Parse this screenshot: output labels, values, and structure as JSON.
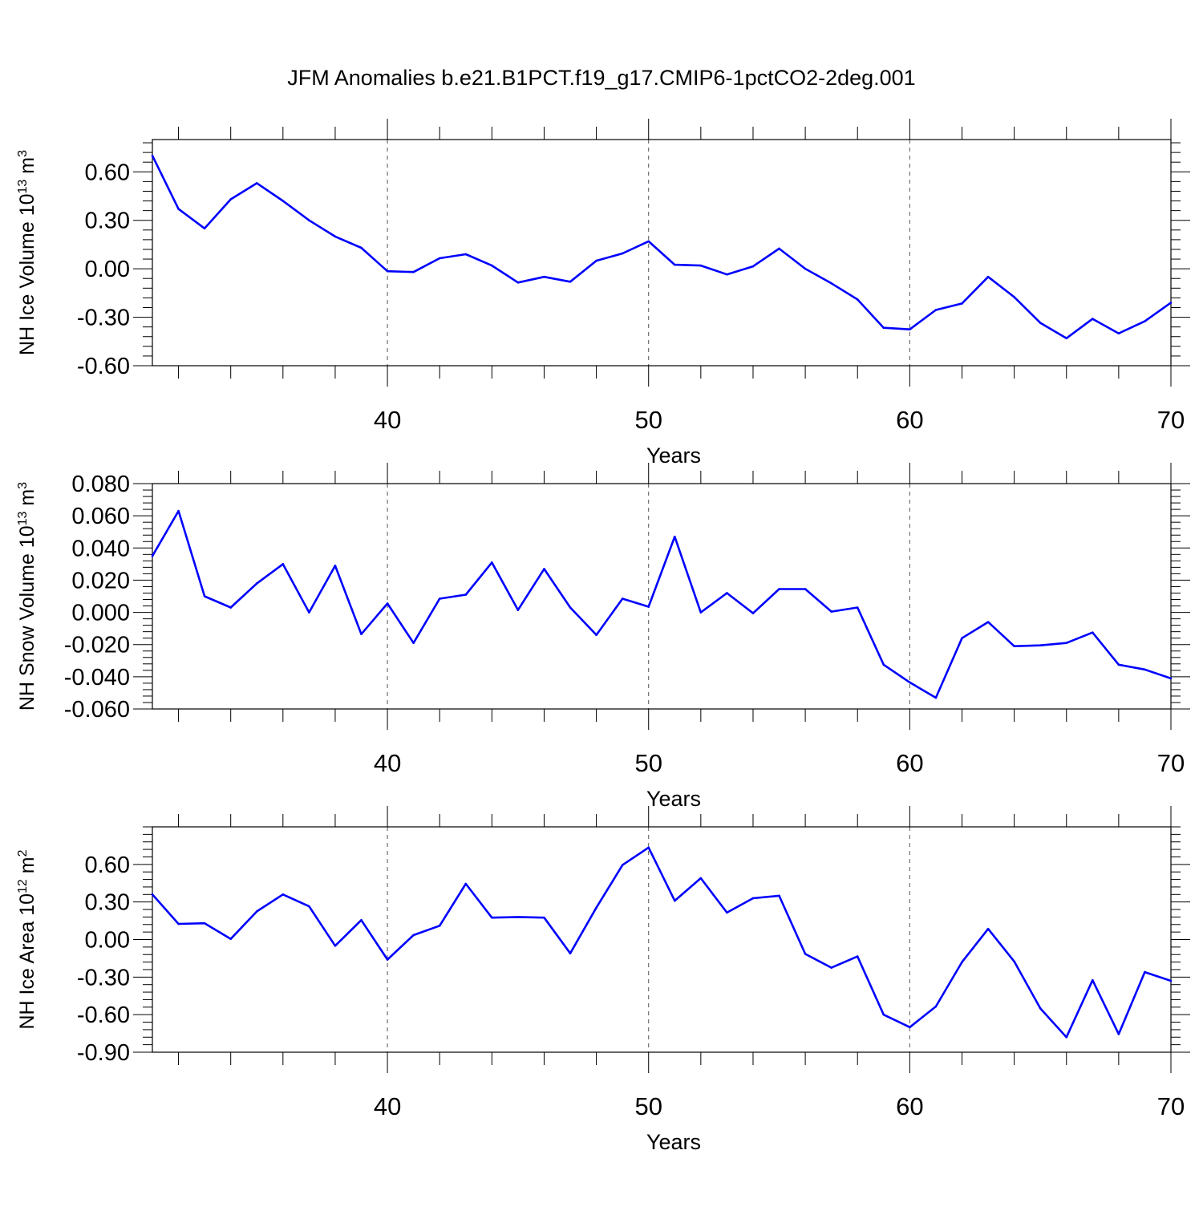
{
  "title": "JFM Anomalies b.e21.B1PCT.f19_g17.CMIP6-1pctCO2-2deg.001",
  "colors": {
    "line": "#0000ff",
    "axis": "#000000",
    "grid": "#555555"
  },
  "chart_data": [
    {
      "type": "line",
      "ylabel": "NH Ice Volume 10",
      "ylabel_sup": "13",
      "ylabel_unit": " m",
      "ylabel_unit_sup": "3",
      "xlabel": "Years",
      "xlim": [
        31,
        70
      ],
      "ylim": [
        -0.6,
        0.8
      ],
      "yticks": [
        -0.6,
        -0.3,
        0.0,
        0.3,
        0.6
      ],
      "ytick_labels": [
        "-0.60",
        "-0.30",
        "0.00",
        "0.30",
        "0.60"
      ],
      "xticks": [
        40,
        50,
        60,
        70
      ],
      "xtick_labels": [
        "40",
        "50",
        "60",
        "70"
      ],
      "grid": "vertical dashed at major x ticks",
      "x": [
        31,
        32,
        33,
        34,
        35,
        36,
        37,
        38,
        39,
        40,
        41,
        42,
        43,
        44,
        45,
        46,
        47,
        48,
        49,
        50,
        51,
        52,
        53,
        54,
        55,
        56,
        57,
        58,
        59,
        60,
        61,
        62,
        63,
        64,
        65,
        66,
        67,
        68,
        69,
        70
      ],
      "y": [
        0.7,
        0.37,
        0.25,
        0.43,
        0.53,
        0.42,
        0.3,
        0.2,
        0.13,
        -0.015,
        -0.02,
        0.065,
        0.09,
        0.02,
        -0.085,
        -0.05,
        -0.08,
        0.05,
        0.095,
        0.17,
        0.025,
        0.02,
        -0.035,
        0.015,
        0.125,
        0.0,
        -0.09,
        -0.19,
        -0.365,
        -0.375,
        -0.255,
        -0.215,
        -0.05,
        -0.175,
        -0.335,
        -0.43,
        -0.31,
        -0.4,
        -0.325,
        -0.21
      ]
    },
    {
      "type": "line",
      "ylabel": "NH Snow Volume 10",
      "ylabel_sup": "13",
      "ylabel_unit": " m",
      "ylabel_unit_sup": "3",
      "xlabel": "Years",
      "xlim": [
        31,
        70
      ],
      "ylim": [
        -0.06,
        0.08
      ],
      "yticks": [
        -0.06,
        -0.04,
        -0.02,
        0.0,
        0.02,
        0.04,
        0.06,
        0.08
      ],
      "ytick_labels": [
        "-0.060",
        "-0.040",
        "-0.020",
        "0.000",
        "0.020",
        "0.040",
        "0.060",
        "0.080"
      ],
      "xticks": [
        40,
        50,
        60,
        70
      ],
      "xtick_labels": [
        "40",
        "50",
        "60",
        "70"
      ],
      "grid": "vertical dashed at major x ticks",
      "x": [
        31,
        32,
        33,
        34,
        35,
        36,
        37,
        38,
        39,
        40,
        41,
        42,
        43,
        44,
        45,
        46,
        47,
        48,
        49,
        50,
        51,
        52,
        53,
        54,
        55,
        56,
        57,
        58,
        59,
        60,
        61,
        62,
        63,
        64,
        65,
        66,
        67,
        68,
        69,
        70
      ],
      "y": [
        0.035,
        0.063,
        0.01,
        0.003,
        0.018,
        0.03,
        0.0,
        0.029,
        -0.0135,
        0.0055,
        -0.019,
        0.0085,
        0.011,
        0.031,
        0.0015,
        0.027,
        0.003,
        -0.014,
        0.0085,
        0.0035,
        0.047,
        0.0,
        0.012,
        -0.0005,
        0.0145,
        0.0145,
        0.0005,
        0.003,
        -0.0325,
        -0.0435,
        -0.053,
        -0.016,
        -0.006,
        -0.021,
        -0.0205,
        -0.019,
        -0.0125,
        -0.0325,
        -0.0355,
        -0.041
      ]
    },
    {
      "type": "line",
      "ylabel": "NH Ice Area 10",
      "ylabel_sup": "12",
      "ylabel_unit": " m",
      "ylabel_unit_sup": "2",
      "xlabel": "Years",
      "xlim": [
        31,
        70
      ],
      "ylim": [
        -0.9,
        0.9
      ],
      "yticks": [
        -0.9,
        -0.6,
        -0.3,
        0.0,
        0.3,
        0.6
      ],
      "ytick_labels": [
        "-0.90",
        "-0.60",
        "-0.30",
        "0.00",
        "0.30",
        "0.60"
      ],
      "xticks": [
        40,
        50,
        60,
        70
      ],
      "xtick_labels": [
        "40",
        "50",
        "60",
        "70"
      ],
      "grid": "vertical dashed at major x ticks",
      "x": [
        31,
        32,
        33,
        34,
        35,
        36,
        37,
        38,
        39,
        40,
        41,
        42,
        43,
        44,
        45,
        46,
        47,
        48,
        49,
        50,
        51,
        52,
        53,
        54,
        55,
        56,
        57,
        58,
        59,
        60,
        61,
        62,
        63,
        64,
        65,
        66,
        67,
        68,
        69,
        70
      ],
      "y": [
        0.36,
        0.125,
        0.13,
        0.005,
        0.225,
        0.36,
        0.265,
        -0.05,
        0.155,
        -0.16,
        0.035,
        0.11,
        0.445,
        0.175,
        0.18,
        0.175,
        -0.11,
        0.255,
        0.595,
        0.735,
        0.31,
        0.49,
        0.215,
        0.33,
        0.35,
        -0.115,
        -0.225,
        -0.135,
        -0.6,
        -0.7,
        -0.535,
        -0.18,
        0.085,
        -0.175,
        -0.55,
        -0.78,
        -0.325,
        -0.755,
        -0.26,
        -0.33
      ]
    }
  ]
}
